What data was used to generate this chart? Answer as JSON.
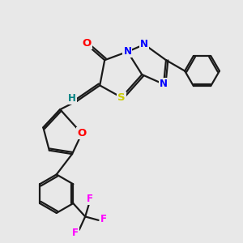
{
  "bg_color": "#e8e8e8",
  "bond_color": "#1a1a1a",
  "atom_colors": {
    "N": "#0000ff",
    "O_carbonyl": "#ff0000",
    "O_furan": "#ff0000",
    "S": "#cccc00",
    "F": "#ff00ff",
    "H": "#008080"
  },
  "figsize": [
    3.0,
    3.0
  ],
  "dpi": 100
}
